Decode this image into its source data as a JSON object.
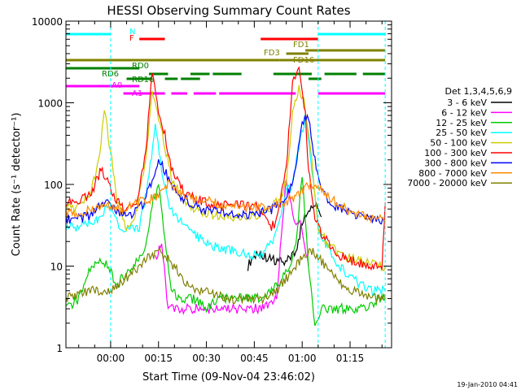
{
  "chart_data": {
    "type": "line",
    "title": "HESSI Observing Summary Count Rates",
    "xlabel": "Start Time (09-Nov-04 23:46:02)",
    "ylabel": "Count Rate (s⁻¹ detector⁻¹)",
    "y_scale": "log",
    "ylim": [
      1,
      10000
    ],
    "xlim_minutes": [
      -14,
      88
    ],
    "x_ticks": [
      {
        "m": 0,
        "label": "00:00"
      },
      {
        "m": 15,
        "label": "00:15"
      },
      {
        "m": 30,
        "label": "00:30"
      },
      {
        "m": 45,
        "label": "00:45"
      },
      {
        "m": 60,
        "label": "01:00"
      },
      {
        "m": 75,
        "label": "01:15"
      }
    ],
    "y_ticks": [
      {
        "v": 1,
        "label": "1"
      },
      {
        "v": 10,
        "label": "10"
      },
      {
        "v": 100,
        "label": "100"
      },
      {
        "v": 1000,
        "label": "1000"
      },
      {
        "v": 10000,
        "label": "10000"
      }
    ],
    "legend_title": "Det 1,3,4,5,6,9",
    "legend_position": "right",
    "series": [
      {
        "name": "3 - 6 keV",
        "color": "#000000",
        "points": [
          [
            43,
            10
          ],
          [
            45,
            14
          ],
          [
            48,
            13
          ],
          [
            51,
            12
          ],
          [
            54,
            11
          ],
          [
            58,
            14
          ],
          [
            60,
            35
          ],
          [
            62,
            45
          ],
          [
            64,
            60
          ],
          [
            66,
            40
          ]
        ]
      },
      {
        "name": "6 - 12 keV",
        "color": "#ff00ff",
        "points": [
          [
            14,
            12
          ],
          [
            16,
            20
          ],
          [
            18,
            3
          ],
          [
            22,
            3
          ],
          [
            26,
            3
          ],
          [
            30,
            3
          ],
          [
            34,
            3
          ],
          [
            38,
            3
          ],
          [
            42,
            3
          ],
          [
            48,
            3
          ],
          [
            52,
            4
          ],
          [
            55,
            130
          ],
          [
            57,
            40
          ],
          [
            60,
            30
          ],
          [
            62,
            10
          ]
        ]
      },
      {
        "name": "12 - 25 keV",
        "color": "#00cc00",
        "points": [
          [
            -14,
            3
          ],
          [
            -10,
            4
          ],
          [
            -6,
            10
          ],
          [
            -3,
            12
          ],
          [
            -1,
            10
          ],
          [
            2,
            6
          ],
          [
            5,
            8
          ],
          [
            8,
            11
          ],
          [
            11,
            18
          ],
          [
            13,
            60
          ],
          [
            15,
            100
          ],
          [
            17,
            20
          ],
          [
            19,
            5
          ],
          [
            22,
            4
          ],
          [
            26,
            4
          ],
          [
            30,
            3
          ],
          [
            34,
            4
          ],
          [
            38,
            4
          ],
          [
            42,
            4
          ],
          [
            46,
            4
          ],
          [
            50,
            5
          ],
          [
            53,
            6
          ],
          [
            56,
            10
          ],
          [
            58,
            18
          ],
          [
            60,
            130
          ],
          [
            62,
            10
          ],
          [
            64,
            2
          ],
          [
            66,
            3
          ],
          [
            68,
            3
          ],
          [
            72,
            3
          ],
          [
            76,
            3
          ],
          [
            80,
            3
          ],
          [
            84,
            4
          ],
          [
            86,
            4
          ]
        ]
      },
      {
        "name": "25 - 50 keV",
        "color": "#00ffff",
        "points": [
          [
            -14,
            30
          ],
          [
            -10,
            30
          ],
          [
            -6,
            35
          ],
          [
            -3,
            40
          ],
          [
            -1,
            55
          ],
          [
            1,
            45
          ],
          [
            3,
            30
          ],
          [
            6,
            28
          ],
          [
            9,
            30
          ],
          [
            12,
            120
          ],
          [
            14,
            600
          ],
          [
            16,
            150
          ],
          [
            18,
            60
          ],
          [
            20,
            40
          ],
          [
            24,
            30
          ],
          [
            28,
            22
          ],
          [
            32,
            18
          ],
          [
            36,
            16
          ],
          [
            40,
            15
          ],
          [
            44,
            14
          ],
          [
            48,
            14
          ],
          [
            52,
            25
          ],
          [
            55,
            80
          ],
          [
            57,
            100
          ],
          [
            59,
            300
          ],
          [
            61,
            700
          ],
          [
            63,
            150
          ],
          [
            65,
            30
          ],
          [
            67,
            20
          ],
          [
            70,
            12
          ],
          [
            74,
            8
          ],
          [
            78,
            6
          ],
          [
            82,
            5
          ],
          [
            86,
            5
          ]
        ]
      },
      {
        "name": "50 - 100 keV",
        "color": "#cccc00",
        "points": [
          [
            -14,
            50
          ],
          [
            -10,
            52
          ],
          [
            -6,
            80
          ],
          [
            -3,
            300
          ],
          [
            -2,
            900
          ],
          [
            0,
            250
          ],
          [
            2,
            60
          ],
          [
            5,
            30
          ],
          [
            8,
            45
          ],
          [
            11,
            200
          ],
          [
            13,
            1500
          ],
          [
            15,
            600
          ],
          [
            17,
            300
          ],
          [
            19,
            120
          ],
          [
            22,
            70
          ],
          [
            26,
            50
          ],
          [
            30,
            45
          ],
          [
            34,
            42
          ],
          [
            38,
            40
          ],
          [
            42,
            40
          ],
          [
            46,
            42
          ],
          [
            50,
            50
          ],
          [
            53,
            70
          ],
          [
            55,
            100
          ],
          [
            57,
            800
          ],
          [
            59,
            1500
          ],
          [
            61,
            900
          ],
          [
            63,
            200
          ],
          [
            65,
            30
          ],
          [
            68,
            18
          ],
          [
            72,
            14
          ],
          [
            76,
            12
          ],
          [
            80,
            11
          ],
          [
            84,
            10
          ],
          [
            86,
            10
          ]
        ]
      },
      {
        "name": "100 - 300 keV",
        "color": "#ff0000",
        "points": [
          [
            -14,
            60
          ],
          [
            -10,
            62
          ],
          [
            -6,
            80
          ],
          [
            -3,
            150
          ],
          [
            -1,
            120
          ],
          [
            1,
            70
          ],
          [
            4,
            50
          ],
          [
            8,
            55
          ],
          [
            11,
            250
          ],
          [
            13,
            2500
          ],
          [
            15,
            700
          ],
          [
            17,
            400
          ],
          [
            19,
            150
          ],
          [
            22,
            90
          ],
          [
            26,
            70
          ],
          [
            30,
            60
          ],
          [
            34,
            55
          ],
          [
            38,
            55
          ],
          [
            42,
            55
          ],
          [
            46,
            55
          ],
          [
            50,
            30
          ],
          [
            52,
            35
          ],
          [
            55,
            150
          ],
          [
            57,
            1800
          ],
          [
            59,
            2500
          ],
          [
            61,
            700
          ],
          [
            62,
            150
          ],
          [
            64,
            40
          ],
          [
            66,
            25
          ],
          [
            70,
            15
          ],
          [
            74,
            12
          ],
          [
            78,
            11
          ],
          [
            82,
            10
          ],
          [
            85,
            10
          ],
          [
            86,
            60
          ]
        ]
      },
      {
        "name": "300 - 800 keV",
        "color": "#0000ff",
        "points": [
          [
            -14,
            38
          ],
          [
            -10,
            38
          ],
          [
            -6,
            42
          ],
          [
            -3,
            55
          ],
          [
            -1,
            60
          ],
          [
            1,
            50
          ],
          [
            4,
            42
          ],
          [
            7,
            45
          ],
          [
            10,
            55
          ],
          [
            13,
            110
          ],
          [
            15,
            200
          ],
          [
            17,
            150
          ],
          [
            19,
            100
          ],
          [
            22,
            70
          ],
          [
            26,
            55
          ],
          [
            30,
            48
          ],
          [
            34,
            45
          ],
          [
            38,
            44
          ],
          [
            42,
            43
          ],
          [
            46,
            44
          ],
          [
            50,
            48
          ],
          [
            53,
            60
          ],
          [
            56,
            80
          ],
          [
            58,
            150
          ],
          [
            60,
            600
          ],
          [
            62,
            700
          ],
          [
            64,
            200
          ],
          [
            66,
            80
          ],
          [
            70,
            55
          ],
          [
            74,
            45
          ],
          [
            78,
            40
          ],
          [
            82,
            37
          ],
          [
            86,
            35
          ]
        ]
      },
      {
        "name": "800 - 7000 keV",
        "color": "#ff8800",
        "points": [
          [
            -14,
            45
          ],
          [
            -10,
            45
          ],
          [
            -6,
            48
          ],
          [
            -3,
            52
          ],
          [
            0,
            55
          ],
          [
            3,
            50
          ],
          [
            6,
            55
          ],
          [
            9,
            60
          ],
          [
            12,
            65
          ],
          [
            15,
            70
          ],
          [
            18,
            100
          ],
          [
            21,
            80
          ],
          [
            24,
            70
          ],
          [
            28,
            65
          ],
          [
            32,
            60
          ],
          [
            36,
            55
          ],
          [
            40,
            53
          ],
          [
            44,
            52
          ],
          [
            48,
            53
          ],
          [
            52,
            55
          ],
          [
            55,
            60
          ],
          [
            58,
            70
          ],
          [
            61,
            90
          ],
          [
            63,
            100
          ],
          [
            65,
            95
          ],
          [
            68,
            70
          ],
          [
            72,
            55
          ],
          [
            76,
            45
          ],
          [
            80,
            40
          ],
          [
            84,
            37
          ],
          [
            86,
            38
          ]
        ]
      },
      {
        "name": "7000 - 20000 keV",
        "color": "#808000",
        "points": [
          [
            -14,
            4
          ],
          [
            -10,
            4.5
          ],
          [
            -6,
            5
          ],
          [
            -3,
            5
          ],
          [
            0,
            5
          ],
          [
            3,
            6
          ],
          [
            6,
            8
          ],
          [
            9,
            10
          ],
          [
            12,
            13
          ],
          [
            15,
            15
          ],
          [
            18,
            12
          ],
          [
            21,
            9
          ],
          [
            24,
            6
          ],
          [
            28,
            5
          ],
          [
            32,
            4.5
          ],
          [
            36,
            4
          ],
          [
            40,
            4
          ],
          [
            44,
            4
          ],
          [
            48,
            4
          ],
          [
            52,
            5
          ],
          [
            55,
            7
          ],
          [
            58,
            10
          ],
          [
            61,
            14
          ],
          [
            63,
            15
          ],
          [
            65,
            13
          ],
          [
            68,
            9
          ],
          [
            72,
            6
          ],
          [
            76,
            5
          ],
          [
            80,
            4.5
          ],
          [
            84,
            4
          ],
          [
            86,
            4
          ]
        ]
      }
    ],
    "flags": [
      {
        "label": "N",
        "color": "#00ffff",
        "segments": [
          [
            -14,
            0
          ],
          [
            65,
            86
          ]
        ]
      },
      {
        "label": "F",
        "color": "#ff0000",
        "segments": [
          [
            9,
            17
          ],
          [
            47,
            65
          ]
        ]
      },
      {
        "label": "FD1",
        "color": "#808000",
        "segments": [
          [
            61,
            86
          ]
        ]
      },
      {
        "label": "FD3",
        "color": "#808000",
        "segments": [
          [
            55,
            62
          ]
        ]
      },
      {
        "label": "FD16",
        "color": "#808000",
        "segments": [
          [
            -14,
            53
          ],
          [
            53,
            86
          ]
        ]
      },
      {
        "label": "RD0",
        "color": "#008000",
        "segments": [
          [
            -14,
            9
          ]
        ]
      },
      {
        "label": "RD6",
        "color": "#008000",
        "segments": [
          [
            12,
            18
          ],
          [
            25,
            31
          ],
          [
            32,
            41
          ],
          [
            51,
            63
          ],
          [
            67,
            77
          ],
          [
            79,
            86
          ]
        ]
      },
      {
        "label": "RD16",
        "color": "#008000",
        "segments": [
          [
            5,
            13
          ],
          [
            17,
            21
          ],
          [
            22,
            28
          ],
          [
            62,
            66
          ]
        ]
      },
      {
        "label": "A0",
        "color": "#ff00ff",
        "segments": [
          [
            -14,
            9
          ]
        ]
      },
      {
        "label": "A1",
        "color": "#ff00ff",
        "segments": [
          [
            4,
            17
          ],
          [
            19,
            24
          ],
          [
            26,
            33
          ],
          [
            34,
            58
          ],
          [
            65,
            86
          ]
        ]
      }
    ],
    "vertical_markers_minutes": [
      0,
      65,
      86
    ],
    "timestamp": "19-Jan-2010 04:41"
  }
}
